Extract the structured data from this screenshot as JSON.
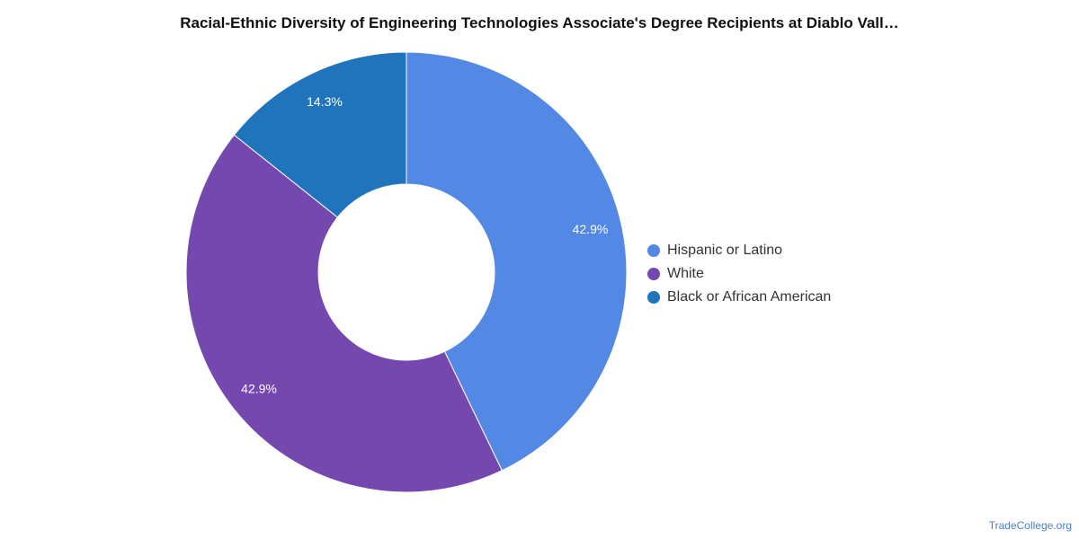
{
  "chart_data": {
    "type": "pie",
    "variant": "donut",
    "title": "Racial-Ethnic Diversity of Engineering Technologies Associate's Degree Recipients at Diablo Vall…",
    "legend_position": "right",
    "series": [
      {
        "name": "Hispanic or Latino",
        "value": 42.9,
        "label": "42.9%",
        "color": "#5388e5"
      },
      {
        "name": "White",
        "value": 42.9,
        "label": "42.9%",
        "color": "#7548b0"
      },
      {
        "name": "Black or African American",
        "value": 14.3,
        "label": "14.3%",
        "color": "#1f74bc"
      }
    ]
  },
  "legend": {
    "items": [
      {
        "label": "Hispanic or Latino",
        "color": "#5388e5"
      },
      {
        "label": "White",
        "color": "#7548b0"
      },
      {
        "label": "Black or African American",
        "color": "#1f74bc"
      }
    ]
  },
  "source": {
    "label": "TradeCollege.org"
  }
}
